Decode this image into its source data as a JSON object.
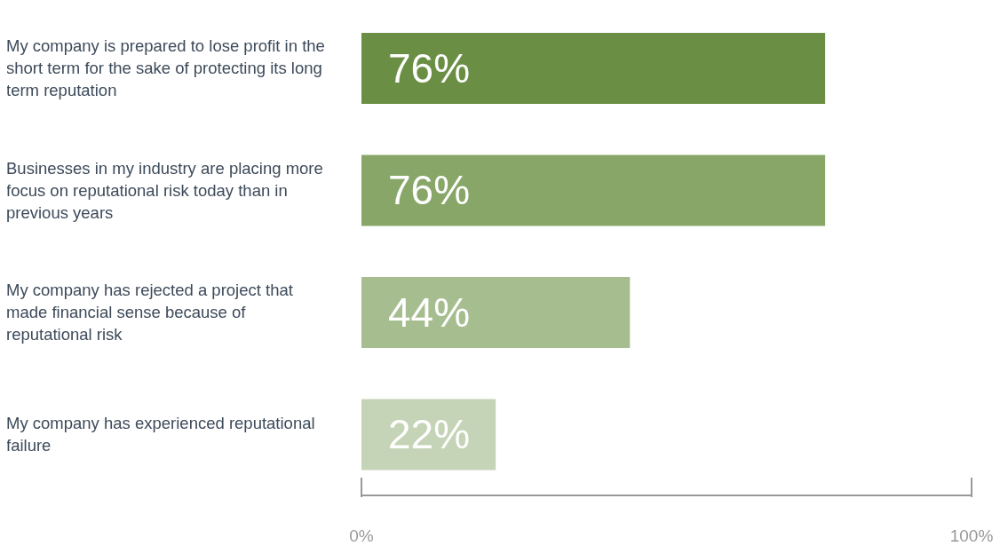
{
  "chart_data": {
    "type": "bar",
    "orientation": "horizontal",
    "categories": [
      "My company is prepared to lose profit in the short term for the sake of protecting its long term reputation",
      "Businesses in my industry are placing more focus on reputational risk today than in previous years",
      "My company has rejected a project that made financial sense because of reputational risk",
      "My company has experienced reputational failure"
    ],
    "values": [
      76,
      76,
      44,
      22
    ],
    "colors": [
      "#6a8f44",
      "#87a667",
      "#a6bd8f",
      "#c5d3b6"
    ],
    "value_labels": [
      "76%",
      "76%",
      "44%",
      "22%"
    ],
    "xlim": [
      0,
      100
    ],
    "xticks": [
      {
        "value": 0,
        "label": "0%"
      },
      {
        "value": 100,
        "label": "100%"
      }
    ],
    "grid": false,
    "legend": false
  }
}
